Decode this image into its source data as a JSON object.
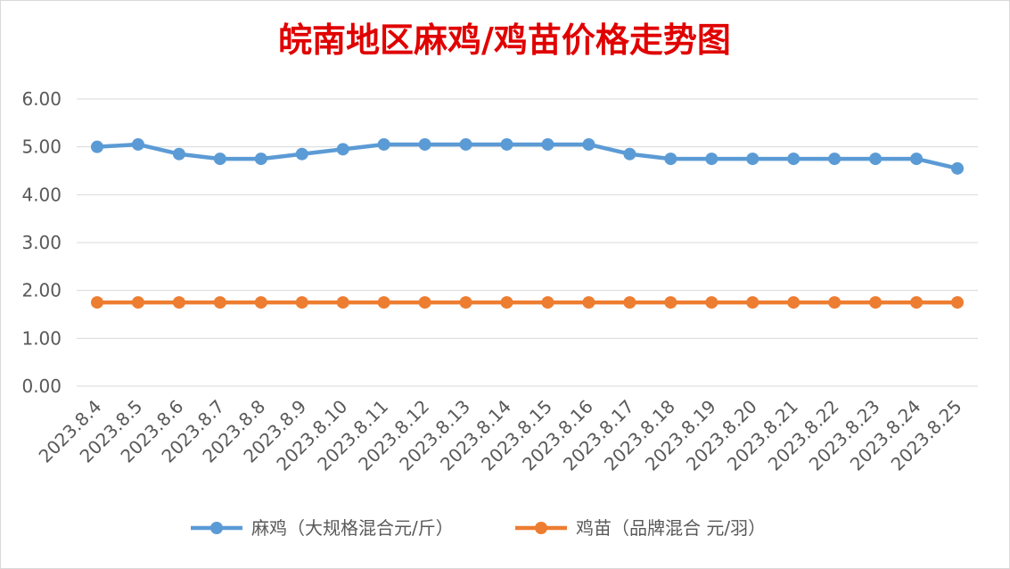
{
  "chart_data": {
    "type": "line",
    "title": "皖南地区麻鸡/鸡苗价格走势图",
    "categories": [
      "2023.8.4",
      "2023.8.5",
      "2023.8.6",
      "2023.8.7",
      "2023.8.8",
      "2023.8.9",
      "2023.8.10",
      "2023.8.11",
      "2023.8.12",
      "2023.8.13",
      "2023.8.14",
      "2023.8.15",
      "2023.8.16",
      "2023.8.17",
      "2023.8.18",
      "2023.8.19",
      "2023.8.20",
      "2023.8.21",
      "2023.8.22",
      "2023.8.23",
      "2023.8.24",
      "2023.8.25"
    ],
    "series": [
      {
        "name": "麻鸡（大规格混合元/斤）",
        "color": "#5b9bd5",
        "values": [
          5.0,
          5.05,
          4.85,
          4.75,
          4.75,
          4.85,
          4.95,
          5.05,
          5.05,
          5.05,
          5.05,
          5.05,
          5.05,
          4.85,
          4.75,
          4.75,
          4.75,
          4.75,
          4.75,
          4.75,
          4.75,
          4.55
        ]
      },
      {
        "name": "鸡苗（品牌混合 元/羽）",
        "color": "#ed7d31",
        "values": [
          1.75,
          1.75,
          1.75,
          1.75,
          1.75,
          1.75,
          1.75,
          1.75,
          1.75,
          1.75,
          1.75,
          1.75,
          1.75,
          1.75,
          1.75,
          1.75,
          1.75,
          1.75,
          1.75,
          1.75,
          1.75,
          1.75
        ]
      }
    ],
    "y_ticks": [
      "0.00",
      "1.00",
      "2.00",
      "3.00",
      "4.00",
      "5.00",
      "6.00"
    ],
    "ylim": [
      0,
      6
    ],
    "grid": true,
    "legend_position": "bottom",
    "xlabel": "",
    "ylabel": ""
  }
}
